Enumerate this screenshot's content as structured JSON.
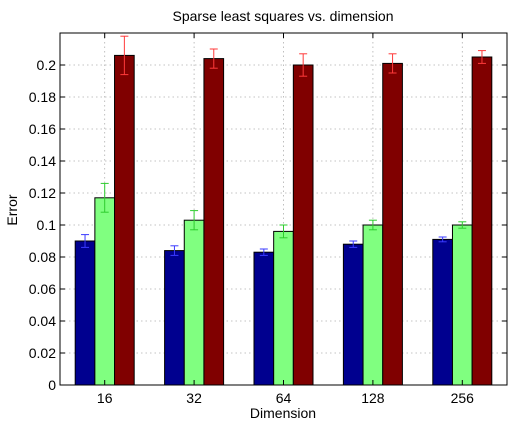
{
  "chart_data": {
    "type": "bar",
    "title": "Sparse least squares vs. dimension",
    "xlabel": "Dimension",
    "ylabel": "Error",
    "categories": [
      "16",
      "32",
      "64",
      "128",
      "256"
    ],
    "ylim": [
      0,
      0.22
    ],
    "yticks": [
      "0",
      "0.02",
      "0.04",
      "0.06",
      "0.08",
      "0.1",
      "0.12",
      "0.14",
      "0.16",
      "0.18",
      "0.2"
    ],
    "grid": true,
    "series": [
      {
        "color": "#00008f",
        "error_color": "#3a3aff",
        "values": [
          0.09,
          0.084,
          0.083,
          0.088,
          0.091
        ],
        "error": [
          0.004,
          0.003,
          0.002,
          0.002,
          0.0015
        ]
      },
      {
        "color": "#80ff80",
        "error_color": "#2ecc2e",
        "values": [
          0.117,
          0.103,
          0.096,
          0.1,
          0.1
        ],
        "error": [
          0.009,
          0.006,
          0.004,
          0.003,
          0.002
        ]
      },
      {
        "color": "#800000",
        "error_color": "#ff3a3a",
        "values": [
          0.206,
          0.204,
          0.2,
          0.201,
          0.205
        ],
        "error": [
          0.012,
          0.006,
          0.007,
          0.006,
          0.004
        ]
      }
    ]
  }
}
